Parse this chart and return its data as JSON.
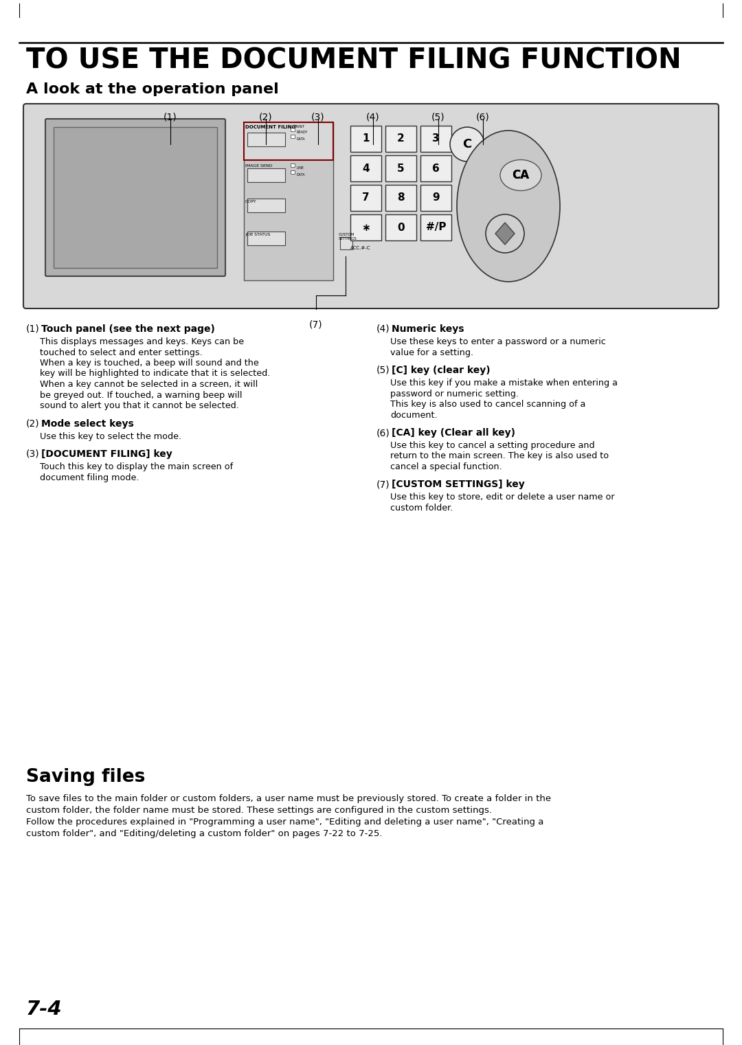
{
  "title": "TO USE THE DOCUMENT FILING FUNCTION",
  "subtitle": "A look at the operation panel",
  "bg_color": "#ffffff",
  "page_number": "7-4",
  "section2_title": "Saving files",
  "section2_body1": "To save files to the main folder or custom folders, a user name must be previously stored. To create a folder in the",
  "section2_body2": "custom folder, the folder name must be stored. These settings are configured in the custom settings.",
  "section2_body3": "Follow the procedures explained in \"Programming a user name\", \"Editing and deleting a user name\", \"Creating a",
  "section2_body4": "custom folder\", and \"Editing/deleting a custom folder\" on pages 7-22 to 7-25.",
  "labels_top": [
    "(1)",
    "(2)",
    "(3)",
    "(4)",
    "(5)",
    "(6)"
  ],
  "label_bottom": "(7)",
  "desc_left": [
    {
      "num": "(1)",
      "bold": "Touch panel (see the next page)",
      "lines": [
        "This displays messages and keys. Keys can be",
        "touched to select and enter settings.",
        "When a key is touched, a beep will sound and the",
        "key will be highlighted to indicate that it is selected.",
        "When a key cannot be selected in a screen, it will",
        "be greyed out. If touched, a warning beep will",
        "sound to alert you that it cannot be selected."
      ]
    },
    {
      "num": "(2)",
      "bold": "Mode select keys",
      "lines": [
        "Use this key to select the mode."
      ]
    },
    {
      "num": "(3)",
      "bold": "[DOCUMENT FILING] key",
      "lines": [
        "Touch this key to display the main screen of",
        "document filing mode."
      ]
    }
  ],
  "desc_right": [
    {
      "num": "(4)",
      "bold": "Numeric keys",
      "lines": [
        "Use these keys to enter a password or a numeric",
        "value for a setting."
      ]
    },
    {
      "num": "(5)",
      "bold": "[C] key (clear key)",
      "lines": [
        "Use this key if you make a mistake when entering a",
        "password or numeric setting.",
        "This key is also used to cancel scanning of a",
        "document."
      ]
    },
    {
      "num": "(6)",
      "bold": "[CA] key (Clear all key)",
      "lines": [
        "Use this key to cancel a setting procedure and",
        "return to the main screen. The key is also used to",
        "cancel a special function."
      ]
    },
    {
      "num": "(7)",
      "bold": "[CUSTOM SETTINGS] key",
      "lines": [
        "Use this key to store, edit or delete a user name or",
        "custom folder."
      ]
    }
  ]
}
